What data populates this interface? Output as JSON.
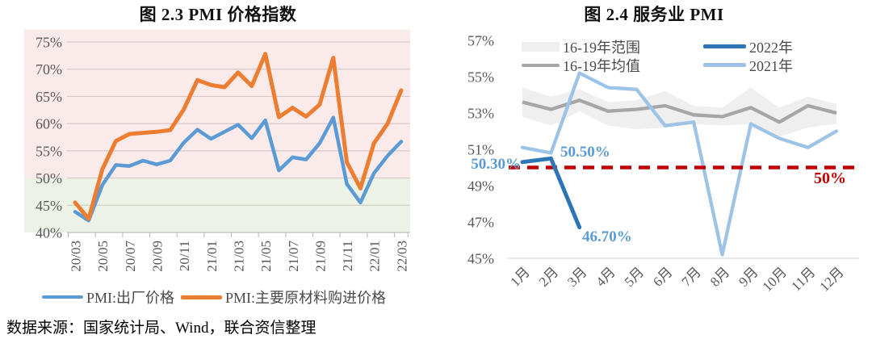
{
  "page": {
    "footer_source": "数据来源：国家统计局、Wind，联合资信整理"
  },
  "chart_data": [
    {
      "id": "pmi-price-index",
      "type": "line",
      "title": "图 2.3  PMI 价格指数",
      "categories": [
        "20/03",
        "20/04",
        "20/05",
        "20/06",
        "20/07",
        "20/08",
        "20/09",
        "20/10",
        "20/11",
        "20/12",
        "21/01",
        "21/02",
        "21/03",
        "21/04",
        "21/05",
        "21/06",
        "21/07",
        "21/08",
        "21/09",
        "21/10",
        "21/11",
        "21/12",
        "22/01",
        "22/02",
        "22/03"
      ],
      "xtick_labels": [
        "20/03",
        "20/05",
        "20/07",
        "20/09",
        "20/11",
        "21/01",
        "21/03",
        "21/05",
        "21/07",
        "21/09",
        "21/11",
        "22/01",
        "22/03"
      ],
      "xtick_positions": [
        0,
        2,
        4,
        6,
        8,
        10,
        12,
        14,
        16,
        18,
        20,
        22,
        24
      ],
      "yticks": [
        40,
        45,
        50,
        55,
        60,
        65,
        70,
        75
      ],
      "ytick_labels": [
        "40%",
        "45%",
        "50%",
        "55%",
        "60%",
        "65%",
        "70%",
        "75%"
      ],
      "ylim": [
        40,
        77.3
      ],
      "grid": true,
      "zones": [
        {
          "from": 50,
          "to": 77.3,
          "color": "#FBEAEA",
          "meaning": "above-50-expansion"
        },
        {
          "from": 40,
          "to": 50,
          "color": "#ECF2E6",
          "meaning": "below-50-contraction"
        }
      ],
      "series": [
        {
          "name": "PMI:出厂价格",
          "color": "#5B9BD5",
          "values": [
            43.8,
            42.2,
            48.7,
            52.4,
            52.2,
            53.2,
            52.5,
            53.2,
            56.5,
            58.9,
            57.2,
            58.5,
            59.8,
            57.3,
            60.6,
            51.4,
            53.8,
            53.4,
            56.4,
            61.1,
            48.9,
            45.5,
            50.9,
            54.1,
            56.7
          ]
        },
        {
          "name": "PMI:主要原材料购进价格",
          "color": "#ED7D31",
          "values": [
            45.5,
            42.5,
            51.6,
            56.8,
            58.1,
            58.3,
            58.5,
            58.8,
            62.6,
            68.0,
            67.1,
            66.7,
            69.4,
            66.9,
            72.8,
            61.2,
            62.9,
            61.3,
            63.5,
            72.1,
            52.9,
            48.1,
            56.4,
            60.0,
            66.1
          ]
        }
      ],
      "legend_position": "bottom"
    },
    {
      "id": "services-pmi",
      "type": "line",
      "title": "图 2.4  服务业 PMI",
      "categories": [
        "1月",
        "2月",
        "3月",
        "4月",
        "5月",
        "6月",
        "7月",
        "8月",
        "9月",
        "10月",
        "11月",
        "12月"
      ],
      "yticks": [
        45,
        47,
        49,
        51,
        53,
        55,
        57
      ],
      "ytick_labels": [
        "45%",
        "47%",
        "49%",
        "51%",
        "53%",
        "55%",
        "57%"
      ],
      "ylim": [
        45,
        57.5
      ],
      "grid": false,
      "band": {
        "name": "16-19年范围",
        "color": "#EFEFEF",
        "upper": [
          54.4,
          53.9,
          54.3,
          53.6,
          53.7,
          54.2,
          53.4,
          53.3,
          54.4,
          53.3,
          53.9,
          53.5
        ],
        "lower": [
          52.8,
          52.3,
          53.1,
          52.3,
          52.1,
          52.2,
          52.4,
          52.3,
          52.4,
          51.7,
          52.2,
          52.4
        ]
      },
      "series": [
        {
          "name": "16-19年均值",
          "color": "#A6A6A6",
          "values": [
            53.6,
            53.2,
            53.7,
            53.1,
            53.2,
            53.4,
            52.9,
            52.8,
            53.3,
            52.5,
            53.4,
            53.0
          ]
        },
        {
          "name": "2022年",
          "color": "#2E75B6",
          "values": [
            50.3,
            50.5,
            46.7
          ]
        },
        {
          "name": "2021年",
          "color": "#9DC3E6",
          "values": [
            51.1,
            50.8,
            55.2,
            54.4,
            54.3,
            52.3,
            52.5,
            45.2,
            52.4,
            51.6,
            51.1,
            52.0
          ]
        }
      ],
      "reference_line": {
        "value": 50,
        "label": "50%",
        "color": "#C00000",
        "style": "dashed"
      },
      "annotations": [
        {
          "text": "50.30%",
          "color": "#5B9BD5",
          "refers_to": "2022年 1月"
        },
        {
          "text": "50.50%",
          "color": "#5B9BD5",
          "refers_to": "2022年 2月"
        },
        {
          "text": "46.70%",
          "color": "#5B9BD5",
          "refers_to": "2022年 3月"
        }
      ],
      "legend_position": "top"
    }
  ]
}
